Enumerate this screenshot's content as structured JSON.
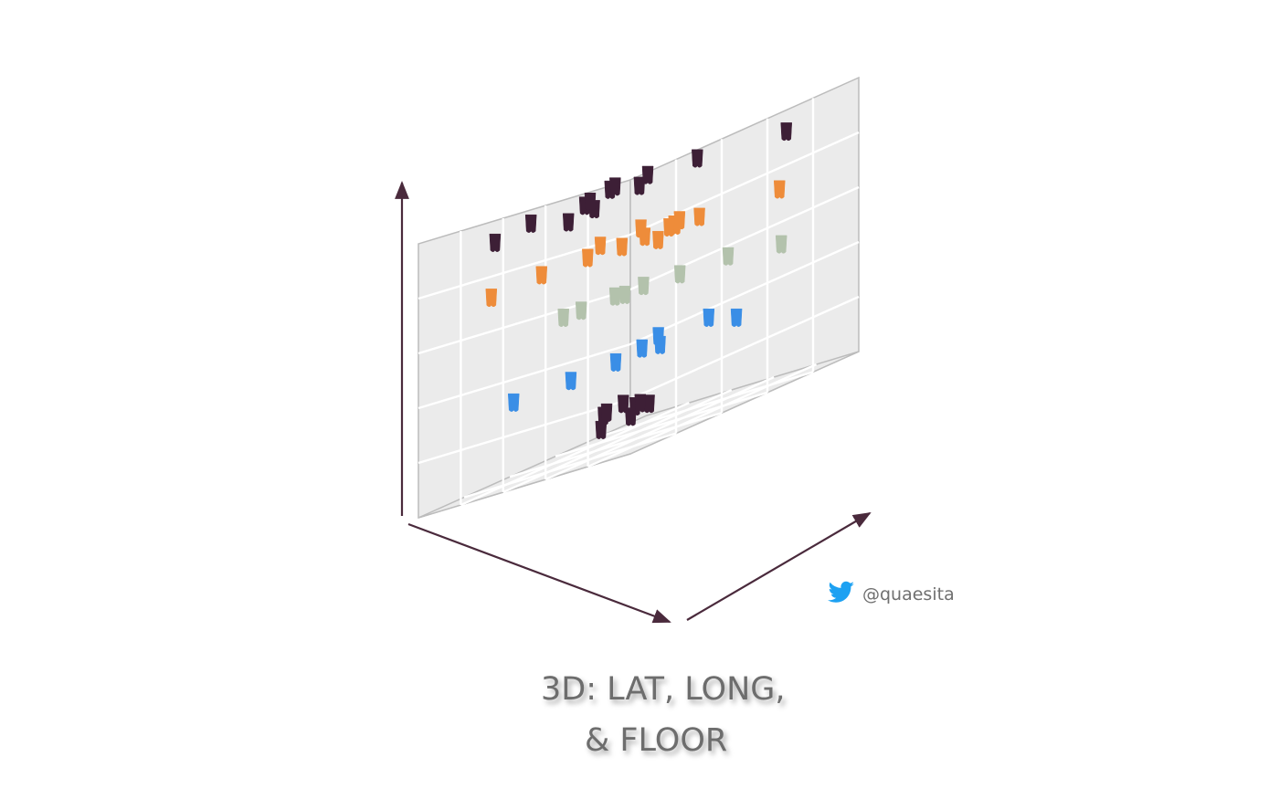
{
  "chart_data": {
    "type": "scatter",
    "dimensions": 3,
    "title": "",
    "xlabel": "",
    "ylabel": "",
    "zlabel": "",
    "axis_ticks": "none",
    "grid": true,
    "pane_color": "#ebebeb",
    "grid_color": "#ffffff",
    "axis_arrow_color": "#4a2a3c",
    "marker": "cup",
    "series": [
      {
        "level": 0,
        "color": "#3d1f36",
        "points": [
          [
            0.3,
            0.15
          ],
          [
            0.3,
            0.28
          ],
          [
            0.45,
            0.5
          ],
          [
            0.57,
            0.55
          ],
          [
            0.6,
            0.6
          ],
          [
            0.72,
            0.55
          ],
          [
            0.78,
            0.62
          ],
          [
            0.82,
            0.73
          ]
        ]
      },
      {
        "level": 1,
        "color": "#3a8ee6",
        "points": [
          [
            0.2,
            0.65
          ],
          [
            0.6,
            0.9
          ],
          [
            0.73,
            0.8
          ],
          [
            0.5,
            0.4
          ],
          [
            0.55,
            0.25
          ],
          [
            0.68,
            0.12
          ],
          [
            0.57,
            0.58
          ],
          [
            0.42,
            0.52
          ]
        ]
      },
      {
        "level": 2,
        "color": "#b3c2ac",
        "points": [
          [
            0.15,
            0.8
          ],
          [
            0.53,
            0.92
          ],
          [
            0.65,
            0.82
          ],
          [
            0.78,
            0.7
          ],
          [
            0.8,
            0.8
          ],
          [
            0.87,
            0.74
          ],
          [
            0.9,
            0.62
          ],
          [
            0.93,
            0.57
          ]
        ]
      },
      {
        "level": 3,
        "color": "#ee8c3a",
        "points": [
          [
            0.18,
            0.82
          ],
          [
            0.3,
            0.4
          ],
          [
            0.45,
            0.72
          ],
          [
            0.52,
            0.68
          ],
          [
            0.6,
            0.62
          ],
          [
            0.6,
            0.52
          ],
          [
            0.85,
            0.4
          ],
          [
            0.85,
            0.18
          ],
          [
            0.92,
            0.9
          ],
          [
            0.95,
            0.75
          ],
          [
            0.63,
            0.8
          ],
          [
            0.57,
            0.72
          ],
          [
            0.55,
            0.68
          ],
          [
            0.74,
            0.5
          ]
        ]
      },
      {
        "level": 4,
        "color": "#3d1f36",
        "points": [
          [
            0.18,
            0.85
          ],
          [
            0.4,
            0.1
          ],
          [
            0.45,
            0.26
          ],
          [
            0.8,
            0.15
          ],
          [
            0.55,
            0.55
          ],
          [
            0.7,
            0.45
          ],
          [
            0.75,
            0.52
          ],
          [
            0.85,
            0.7
          ],
          [
            0.9,
            0.4
          ],
          [
            0.78,
            0.8
          ],
          [
            0.6,
            0.85
          ],
          [
            0.88,
            0.75
          ]
        ]
      }
    ]
  },
  "handle": {
    "icon": "twitter-bird-icon",
    "icon_color": "#1da1f2",
    "text": "@quaesita"
  },
  "caption": {
    "line1": "3D: LAT, LONG,",
    "line2": "& FLOOR"
  }
}
